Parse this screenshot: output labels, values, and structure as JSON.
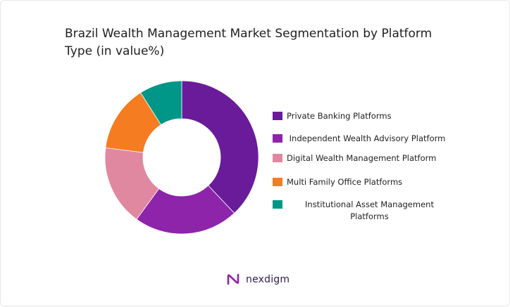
{
  "chart_data": {
    "type": "pie",
    "title": "Brazil Wealth Management Market Segmentation by Platform Type (in value%)",
    "categories": [
      "Private Banking Platforms",
      " Independent Wealth Advisory Platform",
      "Digital Wealth Management Platform",
      "Multi Family Office Platforms",
      "Institutional Asset Management Platforms"
    ],
    "values": [
      38,
      22,
      17,
      14,
      9
    ],
    "colors": [
      "#6a1b9a",
      "#8e24aa",
      "#e088a0",
      "#f57c20",
      "#009688"
    ],
    "legend_position": "right",
    "donut": true
  },
  "brand": {
    "name": "nexdigm"
  }
}
